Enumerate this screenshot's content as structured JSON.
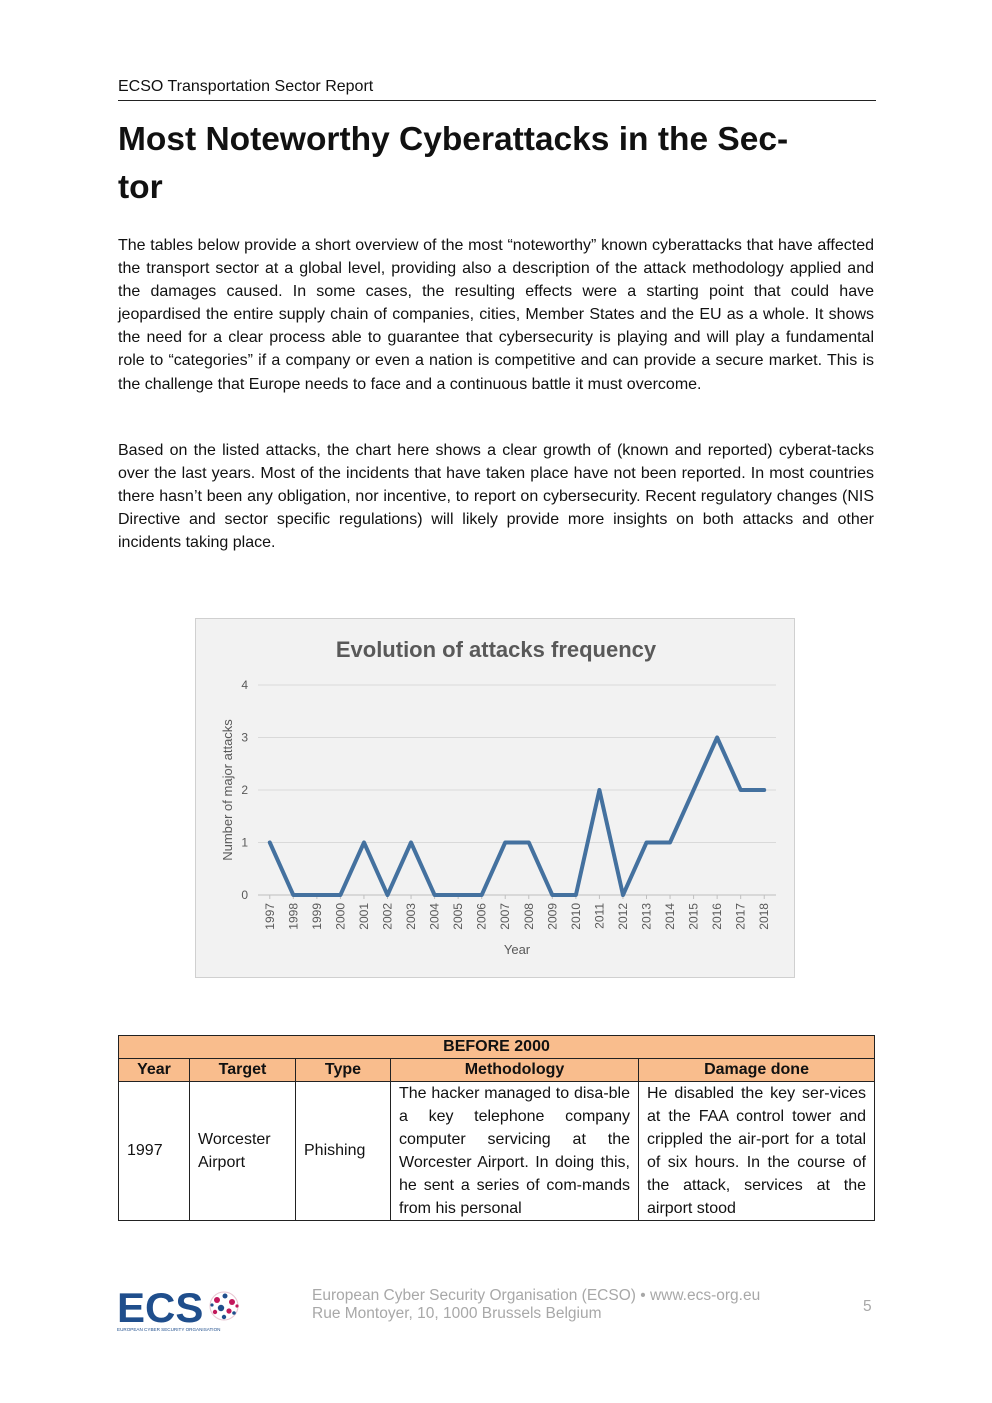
{
  "header": {
    "running_title": "ECSO Transportation Sector Report"
  },
  "title": "Most Noteworthy Cyberattacks in the Sec-\ntor",
  "paragraphs": [
    "The tables below provide a short overview of the most “noteworthy” known cyberattacks that have affected the transport sector at a global level, providing also a description of the attack methodology applied and the damages caused. In some cases, the resulting effects were a starting point that could have jeopardised the entire supply chain of companies, cities, Member States and the EU as a whole. It shows the need for a clear process able to guarantee that cybersecurity is playing and will play a fundamental role to “categories” if a company or even a nation is competitive and can provide a secure market. This is the challenge that Europe needs to face and a continuous battle it must overcome.",
    "Based on the listed attacks, the chart here shows a clear growth of (known and reported) cyberat-tacks over the last years. Most of the incidents that have taken place have not been reported. In most countries there hasn’t been any obligation, nor incentive, to report on cybersecurity. Recent regulatory changes (NIS Directive and sector specific regulations) will likely provide more insights on both attacks and other incidents taking place."
  ],
  "chart_data": {
    "type": "line",
    "title": "Evolution of attacks frequency",
    "xlabel": "Year",
    "ylabel": "Number of major attacks",
    "x": [
      "1997",
      "1998",
      "1999",
      "2000",
      "2001",
      "2002",
      "2003",
      "2004",
      "2005",
      "2006",
      "2007",
      "2008",
      "2009",
      "2010",
      "2011",
      "2012",
      "2013",
      "2014",
      "2015",
      "2016",
      "2017",
      "2018"
    ],
    "values": [
      1,
      0,
      0,
      0,
      1,
      0,
      1,
      0,
      0,
      0,
      1,
      1,
      0,
      0,
      2,
      0,
      1,
      1,
      2,
      3,
      2,
      2
    ],
    "yticks": [
      "0",
      "1",
      "2",
      "3",
      "4"
    ],
    "ylim": [
      0,
      4
    ],
    "grid": true,
    "line_color": "#44719f",
    "background": "#f2f2f2"
  },
  "table": {
    "band_title": "BEFORE 2000",
    "columns": [
      "Year",
      "Target",
      "Type",
      "Methodology",
      "Damage done"
    ],
    "rows": [
      {
        "year": "1997",
        "target": "Worcester Airport",
        "type": "Phishing",
        "methodology": "The hacker managed to disa-ble a key telephone company computer servicing at the Worcester Airport. In doing this, he sent a series of com-mands from his personal",
        "damage": "He disabled the key ser-vices at the FAA control tower and crippled the air-port for a total of six hours. In the course of the attack, services at the airport stood"
      }
    ],
    "header_color": "#f9bd8d"
  },
  "footer": {
    "logo_text": "ECS",
    "logo_subtext": "EUROPEAN CYBER SECURITY ORGANISATION",
    "org_line": "European Cyber Security Organisation (ECSO) • www.ecs-org.eu",
    "address_line": "Rue Montoyer, 10, 1000 Brussels Belgium",
    "page_number": "5"
  }
}
